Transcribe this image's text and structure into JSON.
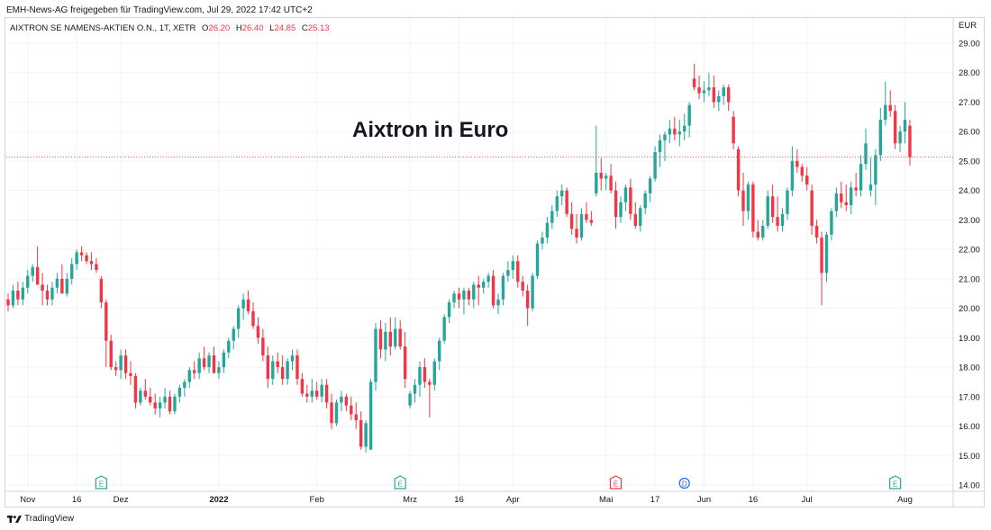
{
  "header": {
    "shared_by": "EMH-News-AG freigegeben für TradingView.com, Jul 29, 2022 17:42 UTC+2"
  },
  "legend": {
    "symbol": "AIXTRON SE NAMENS-AKTIEN O.N., 1T, XETR",
    "open_label": "O",
    "open_value": "26.20",
    "high_label": "H",
    "high_value": "26.40",
    "low_label": "L",
    "low_value": "24.85",
    "close_label": "C",
    "close_value": "25.13"
  },
  "footer": {
    "brand": "TradingView"
  },
  "colors": {
    "up": "#26a69a",
    "down": "#f23645",
    "grid": "#f0f3fa",
    "axis": "#d1d4dc"
  },
  "chart_data": {
    "type": "candlestick",
    "title": "Aixtron in Euro",
    "currency": "EUR",
    "ylim": [
      13.8,
      29.4
    ],
    "y_ticks": [
      "29.00",
      "28.00",
      "27.00",
      "26.00",
      "25.00",
      "24.00",
      "23.00",
      "22.00",
      "21.00",
      "20.00",
      "19.00",
      "18.00",
      "17.00",
      "16.00",
      "15.00",
      "14.00"
    ],
    "x_ticks": [
      {
        "label": "Nov",
        "index": 4,
        "bold": false
      },
      {
        "label": "16",
        "index": 14,
        "bold": false
      },
      {
        "label": "Dez",
        "index": 23,
        "bold": false
      },
      {
        "label": "2022",
        "index": 43,
        "bold": true
      },
      {
        "label": "Feb",
        "index": 63,
        "bold": false
      },
      {
        "label": "Mrz",
        "index": 82,
        "bold": false
      },
      {
        "label": "16",
        "index": 92,
        "bold": false
      },
      {
        "label": "Apr",
        "index": 103,
        "bold": false
      },
      {
        "label": "Mai",
        "index": 122,
        "bold": false
      },
      {
        "label": "17",
        "index": 132,
        "bold": false
      },
      {
        "label": "Jun",
        "index": 142,
        "bold": false
      },
      {
        "label": "16",
        "index": 152,
        "bold": false
      },
      {
        "label": "Jul",
        "index": 163,
        "bold": false
      },
      {
        "label": "Aug",
        "index": 183,
        "bold": false
      }
    ],
    "last_price": 25.13,
    "events": [
      {
        "label": "E",
        "index": 19,
        "kind": "earnings",
        "color": "#26a69a"
      },
      {
        "label": "E",
        "index": 80,
        "kind": "earnings",
        "color": "#26a69a"
      },
      {
        "label": "E",
        "index": 124,
        "kind": "earnings",
        "color": "#f23645"
      },
      {
        "label": "D",
        "index": 138,
        "kind": "dividend",
        "color": "#2962ff"
      },
      {
        "label": "E",
        "index": 181,
        "kind": "earnings",
        "color": "#26a69a"
      }
    ],
    "candles": [
      [
        20.3,
        20.5,
        19.9,
        20.1
      ],
      [
        20.1,
        20.8,
        20.0,
        20.6
      ],
      [
        20.6,
        20.9,
        20.1,
        20.3
      ],
      [
        20.3,
        20.9,
        20.1,
        20.7
      ],
      [
        20.7,
        21.3,
        20.5,
        21.1
      ],
      [
        21.1,
        21.5,
        20.9,
        21.4
      ],
      [
        21.4,
        22.1,
        20.9,
        20.8
      ],
      [
        20.8,
        21.2,
        20.1,
        20.6
      ],
      [
        20.6,
        20.8,
        20.1,
        20.3
      ],
      [
        20.3,
        20.9,
        20.1,
        20.7
      ],
      [
        20.7,
        21.2,
        20.5,
        21.0
      ],
      [
        21.0,
        21.5,
        20.6,
        20.5
      ],
      [
        20.5,
        21.2,
        20.4,
        21.0
      ],
      [
        21.0,
        21.7,
        20.8,
        21.5
      ],
      [
        21.5,
        22.0,
        21.3,
        21.9
      ],
      [
        21.9,
        22.1,
        21.6,
        21.8
      ],
      [
        21.8,
        21.9,
        21.5,
        21.6
      ],
      [
        21.6,
        21.9,
        21.3,
        21.5
      ],
      [
        21.5,
        21.7,
        21.2,
        21.3
      ],
      [
        21.0,
        21.1,
        20.0,
        20.2
      ],
      [
        20.2,
        20.3,
        18.0,
        18.9
      ],
      [
        18.9,
        19.1,
        17.9,
        18.0
      ],
      [
        18.0,
        18.2,
        17.7,
        17.9
      ],
      [
        17.9,
        18.6,
        17.6,
        18.4
      ],
      [
        18.4,
        18.6,
        17.6,
        17.8
      ],
      [
        17.8,
        18.2,
        17.4,
        17.7
      ],
      [
        17.7,
        17.8,
        16.6,
        16.8
      ],
      [
        16.8,
        17.3,
        16.7,
        17.2
      ],
      [
        17.2,
        17.6,
        16.9,
        17.0
      ],
      [
        17.0,
        17.3,
        16.7,
        16.8
      ],
      [
        16.8,
        17.1,
        16.4,
        16.6
      ],
      [
        16.6,
        17.0,
        16.3,
        16.8
      ],
      [
        16.8,
        17.3,
        16.6,
        17.0
      ],
      [
        17.0,
        17.2,
        16.4,
        16.5
      ],
      [
        16.5,
        17.1,
        16.4,
        17.0
      ],
      [
        17.0,
        17.4,
        16.8,
        17.3
      ],
      [
        17.3,
        17.6,
        17.0,
        17.5
      ],
      [
        17.5,
        18.0,
        17.3,
        17.9
      ],
      [
        17.9,
        18.2,
        17.6,
        17.8
      ],
      [
        17.8,
        18.5,
        17.6,
        18.3
      ],
      [
        18.3,
        18.7,
        17.9,
        18.0
      ],
      [
        18.0,
        18.5,
        17.8,
        18.4
      ],
      [
        18.4,
        18.7,
        17.8,
        17.8
      ],
      [
        17.8,
        18.2,
        17.6,
        18.0
      ],
      [
        18.0,
        18.6,
        17.8,
        18.5
      ],
      [
        18.5,
        19.0,
        18.3,
        18.9
      ],
      [
        18.9,
        19.4,
        18.6,
        19.3
      ],
      [
        19.3,
        20.1,
        19.0,
        20.0
      ],
      [
        20.0,
        20.5,
        19.6,
        20.3
      ],
      [
        20.3,
        20.6,
        19.8,
        19.9
      ],
      [
        19.9,
        20.2,
        19.3,
        19.4
      ],
      [
        19.4,
        19.7,
        18.8,
        19.0
      ],
      [
        19.0,
        19.3,
        18.2,
        18.4
      ],
      [
        18.4,
        18.7,
        17.3,
        17.6
      ],
      [
        17.6,
        18.4,
        17.4,
        18.2
      ],
      [
        18.2,
        18.5,
        17.8,
        18.0
      ],
      [
        18.0,
        18.4,
        17.4,
        17.6
      ],
      [
        17.6,
        18.3,
        17.4,
        18.2
      ],
      [
        18.2,
        18.6,
        17.9,
        18.4
      ],
      [
        18.4,
        18.6,
        17.4,
        17.6
      ],
      [
        17.6,
        17.8,
        17.0,
        17.1
      ],
      [
        17.1,
        17.4,
        16.8,
        17.0
      ],
      [
        17.0,
        17.6,
        16.8,
        17.2
      ],
      [
        17.2,
        17.5,
        16.9,
        17.0
      ],
      [
        17.0,
        17.6,
        16.8,
        17.4
      ],
      [
        17.4,
        17.6,
        16.6,
        16.8
      ],
      [
        16.8,
        17.1,
        15.9,
        16.1
      ],
      [
        16.1,
        16.9,
        16.0,
        16.8
      ],
      [
        16.8,
        17.2,
        16.5,
        17.0
      ],
      [
        17.0,
        17.1,
        16.5,
        16.7
      ],
      [
        16.7,
        17.0,
        16.2,
        16.4
      ],
      [
        16.4,
        16.8,
        15.9,
        16.2
      ],
      [
        16.2,
        16.5,
        15.2,
        15.3
      ],
      [
        15.3,
        16.2,
        15.1,
        16.1
      ],
      [
        15.2,
        17.6,
        15.2,
        17.5
      ],
      [
        17.5,
        19.5,
        17.2,
        19.3
      ],
      [
        19.3,
        19.6,
        18.3,
        18.6
      ],
      [
        18.6,
        19.5,
        18.2,
        19.2
      ],
      [
        19.2,
        19.7,
        18.4,
        18.7
      ],
      [
        18.7,
        19.7,
        18.6,
        19.3
      ],
      [
        19.3,
        19.6,
        18.6,
        18.7
      ],
      [
        18.7,
        19.2,
        17.3,
        17.6
      ],
      [
        16.7,
        17.2,
        16.6,
        17.1
      ],
      [
        17.1,
        17.6,
        16.8,
        17.4
      ],
      [
        17.4,
        18.2,
        17.0,
        18.0
      ],
      [
        18.0,
        18.3,
        17.3,
        17.5
      ],
      [
        17.5,
        17.6,
        16.3,
        17.4
      ],
      [
        17.4,
        18.3,
        17.2,
        18.2
      ],
      [
        18.2,
        19.0,
        17.9,
        18.9
      ],
      [
        18.9,
        19.8,
        18.8,
        19.7
      ],
      [
        19.7,
        20.3,
        19.5,
        20.2
      ],
      [
        20.2,
        20.6,
        20.0,
        20.5
      ],
      [
        20.5,
        20.7,
        20.0,
        20.3
      ],
      [
        20.3,
        20.7,
        19.8,
        20.6
      ],
      [
        20.6,
        20.7,
        20.1,
        20.3
      ],
      [
        20.3,
        20.9,
        20.0,
        20.8
      ],
      [
        20.8,
        21.1,
        20.1,
        20.7
      ],
      [
        20.7,
        21.0,
        20.5,
        20.9
      ],
      [
        20.9,
        21.2,
        20.7,
        21.1
      ],
      [
        21.1,
        21.3,
        20.0,
        20.1
      ],
      [
        20.1,
        20.5,
        19.8,
        20.3
      ],
      [
        20.3,
        21.2,
        20.1,
        21.1
      ],
      [
        21.1,
        21.6,
        20.9,
        21.3
      ],
      [
        21.3,
        21.8,
        21.0,
        21.6
      ],
      [
        21.6,
        21.8,
        20.7,
        20.9
      ],
      [
        20.9,
        21.1,
        20.4,
        20.6
      ],
      [
        20.6,
        20.8,
        19.4,
        20.0
      ],
      [
        20.0,
        21.2,
        19.9,
        21.1
      ],
      [
        21.1,
        22.3,
        21.0,
        22.2
      ],
      [
        22.2,
        22.6,
        22.0,
        22.4
      ],
      [
        22.4,
        23.1,
        22.2,
        22.9
      ],
      [
        22.9,
        23.5,
        22.7,
        23.3
      ],
      [
        23.3,
        24.0,
        23.1,
        23.8
      ],
      [
        23.8,
        24.2,
        23.5,
        24.0
      ],
      [
        24.0,
        24.1,
        23.1,
        23.2
      ],
      [
        23.2,
        23.6,
        22.5,
        22.7
      ],
      [
        22.7,
        23.2,
        22.2,
        22.4
      ],
      [
        22.4,
        23.4,
        22.3,
        23.2
      ],
      [
        23.2,
        23.6,
        22.9,
        23.0
      ],
      [
        23.0,
        23.3,
        22.8,
        22.9
      ],
      [
        23.9,
        26.2,
        23.8,
        24.6
      ],
      [
        24.6,
        25.1,
        24.0,
        24.4
      ],
      [
        24.4,
        24.6,
        24.0,
        24.5
      ],
      [
        24.5,
        24.9,
        23.9,
        24.0
      ],
      [
        24.0,
        24.3,
        22.7,
        23.1
      ],
      [
        23.1,
        23.8,
        22.9,
        23.6
      ],
      [
        23.6,
        24.2,
        23.3,
        24.1
      ],
      [
        24.1,
        24.4,
        23.0,
        23.2
      ],
      [
        23.2,
        23.6,
        22.7,
        22.8
      ],
      [
        22.8,
        23.5,
        22.6,
        23.4
      ],
      [
        23.4,
        24.0,
        23.2,
        23.9
      ],
      [
        23.9,
        24.5,
        23.6,
        24.4
      ],
      [
        24.4,
        25.5,
        24.3,
        25.3
      ],
      [
        25.3,
        25.9,
        24.8,
        25.7
      ],
      [
        25.7,
        26.0,
        25.0,
        25.9
      ],
      [
        25.9,
        26.4,
        25.6,
        26.1
      ],
      [
        26.1,
        26.5,
        25.7,
        25.9
      ],
      [
        25.9,
        26.4,
        25.5,
        26.0
      ],
      [
        26.0,
        26.6,
        25.7,
        26.2
      ],
      [
        26.2,
        27.0,
        25.8,
        26.9
      ],
      [
        27.8,
        28.3,
        27.4,
        27.5
      ],
      [
        27.5,
        27.9,
        27.1,
        27.3
      ],
      [
        27.3,
        27.7,
        27.0,
        27.4
      ],
      [
        27.4,
        28.0,
        27.2,
        27.5
      ],
      [
        27.5,
        27.9,
        26.8,
        27.0
      ],
      [
        27.0,
        27.4,
        26.7,
        27.2
      ],
      [
        27.2,
        27.6,
        26.9,
        27.5
      ],
      [
        27.5,
        27.6,
        26.7,
        27.0
      ],
      [
        26.5,
        26.7,
        25.4,
        25.6
      ],
      [
        25.4,
        25.5,
        23.8,
        24.0
      ],
      [
        24.0,
        24.6,
        22.8,
        23.3
      ],
      [
        23.3,
        24.3,
        23.0,
        24.2
      ],
      [
        24.2,
        24.3,
        22.4,
        22.6
      ],
      [
        22.6,
        23.0,
        22.3,
        22.4
      ],
      [
        22.4,
        23.0,
        22.3,
        22.8
      ],
      [
        22.8,
        24.0,
        22.7,
        23.8
      ],
      [
        23.8,
        24.2,
        22.9,
        23.1
      ],
      [
        23.1,
        23.8,
        22.6,
        22.8
      ],
      [
        22.8,
        23.4,
        22.6,
        23.2
      ],
      [
        23.2,
        24.1,
        23.0,
        24.0
      ],
      [
        24.0,
        25.5,
        23.8,
        25.0
      ],
      [
        25.0,
        25.4,
        24.6,
        24.8
      ],
      [
        24.8,
        24.9,
        24.3,
        24.5
      ],
      [
        24.5,
        24.8,
        24.0,
        24.2
      ],
      [
        24.0,
        24.2,
        22.5,
        22.8
      ],
      [
        22.8,
        23.0,
        22.2,
        22.4
      ],
      [
        22.4,
        22.6,
        20.1,
        21.2
      ],
      [
        21.2,
        22.6,
        20.9,
        22.5
      ],
      [
        22.5,
        23.4,
        22.3,
        23.3
      ],
      [
        23.3,
        24.1,
        23.1,
        23.9
      ],
      [
        23.9,
        24.3,
        23.4,
        23.6
      ],
      [
        23.6,
        24.2,
        23.3,
        23.5
      ],
      [
        23.5,
        24.3,
        23.2,
        24.1
      ],
      [
        24.1,
        24.6,
        23.8,
        24.0
      ],
      [
        24.0,
        25.2,
        23.8,
        24.9
      ],
      [
        24.9,
        26.1,
        24.7,
        25.6
      ],
      [
        24.0,
        25.1,
        23.8,
        24.2
      ],
      [
        24.2,
        25.4,
        23.5,
        25.2
      ],
      [
        25.2,
        26.8,
        25.0,
        26.4
      ],
      [
        26.4,
        27.7,
        26.2,
        26.9
      ],
      [
        26.9,
        27.4,
        26.5,
        26.7
      ],
      [
        26.7,
        26.9,
        25.4,
        25.6
      ],
      [
        25.6,
        26.2,
        25.3,
        26.0
      ],
      [
        26.0,
        27.0,
        25.6,
        26.4
      ],
      [
        26.2,
        26.4,
        24.85,
        25.13
      ]
    ]
  }
}
